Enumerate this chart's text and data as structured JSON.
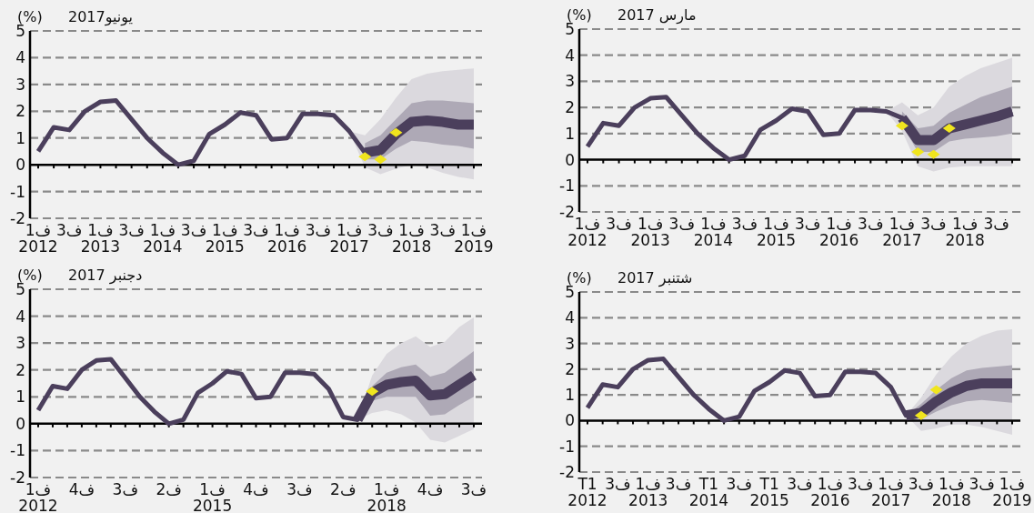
{
  "chart_data": [
    {
      "type": "line",
      "title": "مارس 2017",
      "ylabel": "(%)",
      "ylim": [
        -2,
        5
      ],
      "yticks": [
        -2,
        -1,
        0,
        1,
        2,
        3,
        4,
        5
      ],
      "grid": "y",
      "categories": [
        "ف1\n2012",
        null,
        "ف3",
        null,
        "ف1\n2013",
        null,
        "ف3",
        null,
        "ف1\n2014",
        null,
        "ف3",
        null,
        "ف1\n2015",
        null,
        "ف3",
        null,
        "ف1\n2016",
        null,
        "ف3",
        null,
        "ف1\n2017",
        null,
        "ف3",
        null,
        "ف1\n2018",
        null,
        "ف3",
        null
      ],
      "series": [
        {
          "type": "line",
          "color": "#4b3f5c",
          "values": [
            0.5,
            1.4,
            1.3,
            2.0,
            2.35,
            2.4,
            1.7,
            1.0,
            0.45,
            0.0,
            0.15,
            1.15,
            1.5,
            1.95,
            1.85,
            0.95,
            1.0,
            1.9,
            1.9,
            1.85,
            1.6,
            0.75,
            0.75,
            1.2,
            1.35,
            1.5,
            1.65,
            1.85
          ],
          "lower": [
            null,
            null,
            null,
            null,
            null,
            null,
            null,
            null,
            null,
            null,
            null,
            null,
            null,
            null,
            null,
            null,
            null,
            null,
            null,
            1.85,
            1.1,
            -0.25,
            -0.45,
            -0.3,
            -0.25,
            -0.25,
            -0.25,
            -0.25
          ],
          "upper": [
            null,
            null,
            null,
            null,
            null,
            null,
            null,
            null,
            null,
            null,
            null,
            null,
            null,
            null,
            null,
            null,
            null,
            null,
            null,
            1.85,
            2.2,
            1.7,
            2.0,
            2.8,
            3.2,
            3.5,
            3.7,
            3.9
          ]
        },
        {
          "type": "line",
          "color": "#4b3f5c",
          "values": [
            null,
            null,
            null,
            null,
            null,
            null,
            null,
            null,
            null,
            null,
            null,
            null,
            null,
            null,
            null,
            null,
            null,
            null,
            null,
            null,
            1.6,
            0.75,
            0.75,
            1.2,
            1.35,
            1.5,
            1.65,
            1.85
          ],
          "lower": [
            null,
            null,
            null,
            null,
            null,
            null,
            null,
            null,
            null,
            null,
            null,
            null,
            null,
            null,
            null,
            null,
            null,
            null,
            null,
            null,
            1.35,
            0.3,
            0.3,
            0.7,
            0.8,
            0.85,
            0.9,
            1.0
          ],
          "upper": [
            null,
            null,
            null,
            null,
            null,
            null,
            null,
            null,
            null,
            null,
            null,
            null,
            null,
            null,
            null,
            null,
            null,
            null,
            null,
            null,
            1.85,
            1.2,
            1.3,
            1.8,
            2.1,
            2.4,
            2.6,
            2.8
          ]
        },
        {
          "type": "scatter",
          "marker": "diamond",
          "color": "#f0e51e",
          "values": [
            null,
            null,
            null,
            null,
            null,
            null,
            null,
            null,
            null,
            null,
            null,
            null,
            null,
            null,
            null,
            null,
            null,
            null,
            null,
            null,
            1.3,
            0.3,
            0.2,
            1.2,
            null,
            null,
            null,
            null
          ]
        }
      ]
    },
    {
      "type": "line",
      "title": "يونيو2017",
      "ylabel": "(%)",
      "ylim": [
        -2,
        5
      ],
      "yticks": [
        -2,
        -1,
        0,
        1,
        2,
        3,
        4,
        5
      ],
      "grid": "y",
      "categories": [
        "ف1\n2012",
        null,
        "ف3",
        null,
        "ف1\n2013",
        null,
        "ف3",
        null,
        "ف1\n2014",
        null,
        "ف3",
        null,
        "ف1\n2015",
        null,
        "ف3",
        null,
        "ف1\n2016",
        null,
        "ف3",
        null,
        "ف1\n2017",
        null,
        "ف3",
        null,
        "ف1\n2018",
        null,
        "ف3",
        null,
        "ف1\n2019"
      ],
      "series": [
        {
          "type": "line",
          "color": "#4b3f5c",
          "values": [
            0.5,
            1.4,
            1.3,
            2.0,
            2.35,
            2.4,
            1.7,
            1.0,
            0.45,
            0.0,
            0.15,
            1.15,
            1.5,
            1.95,
            1.85,
            0.95,
            1.0,
            1.9,
            1.9,
            1.85,
            1.25,
            0.45,
            0.55,
            1.15,
            1.6,
            1.65,
            1.6,
            1.5,
            1.5
          ],
          "lower": [
            null,
            null,
            null,
            null,
            null,
            null,
            null,
            null,
            null,
            null,
            null,
            null,
            null,
            null,
            null,
            null,
            null,
            null,
            null,
            null,
            1.25,
            -0.1,
            -0.35,
            -0.15,
            0.0,
            -0.1,
            -0.3,
            -0.45,
            -0.55
          ],
          "upper": [
            null,
            null,
            null,
            null,
            null,
            null,
            null,
            null,
            null,
            null,
            null,
            null,
            null,
            null,
            null,
            null,
            null,
            null,
            null,
            null,
            1.25,
            1.1,
            1.7,
            2.5,
            3.2,
            3.4,
            3.5,
            3.55,
            3.6
          ]
        },
        {
          "type": "line",
          "color": "#4b3f5c",
          "values": [
            null,
            null,
            null,
            null,
            null,
            null,
            null,
            null,
            null,
            null,
            null,
            null,
            null,
            null,
            null,
            null,
            null,
            null,
            null,
            null,
            null,
            0.45,
            0.55,
            1.15,
            1.6,
            1.65,
            1.6,
            1.5,
            1.5
          ],
          "lower": [
            null,
            null,
            null,
            null,
            null,
            null,
            null,
            null,
            null,
            null,
            null,
            null,
            null,
            null,
            null,
            null,
            null,
            null,
            null,
            null,
            null,
            0.2,
            0.2,
            0.6,
            0.9,
            0.85,
            0.75,
            0.7,
            0.6
          ],
          "upper": [
            null,
            null,
            null,
            null,
            null,
            null,
            null,
            null,
            null,
            null,
            null,
            null,
            null,
            null,
            null,
            null,
            null,
            null,
            null,
            null,
            null,
            0.8,
            1.1,
            1.7,
            2.3,
            2.4,
            2.4,
            2.35,
            2.3
          ]
        },
        {
          "type": "scatter",
          "marker": "diamond",
          "color": "#f0e51e",
          "values": [
            null,
            null,
            null,
            null,
            null,
            null,
            null,
            null,
            null,
            null,
            null,
            null,
            null,
            null,
            null,
            null,
            null,
            null,
            null,
            null,
            null,
            0.3,
            0.2,
            1.2,
            null,
            null,
            null,
            null,
            null
          ]
        }
      ]
    },
    {
      "type": "line",
      "title": "شتنبر 2017",
      "ylabel": "(%)",
      "ylim": [
        -2,
        5
      ],
      "yticks": [
        -2,
        -1,
        0,
        1,
        2,
        3,
        4,
        5
      ],
      "grid": "y",
      "categories": [
        "T1\n2012",
        null,
        "ف3",
        null,
        "ف1\n2013",
        null,
        "ف3",
        null,
        "T1\n2014",
        null,
        "ف3",
        null,
        "T1\n2015",
        null,
        "ف3",
        null,
        "ف1\n2016",
        null,
        "ف3",
        null,
        "ف1\n2017",
        null,
        "ف3",
        null,
        "ف1\n2018",
        null,
        "ف3",
        null,
        "ف1\n2019"
      ],
      "series": [
        {
          "type": "line",
          "color": "#4b3f5c",
          "values": [
            0.5,
            1.4,
            1.3,
            2.0,
            2.35,
            2.4,
            1.7,
            1.0,
            0.45,
            0.0,
            0.15,
            1.15,
            1.5,
            1.95,
            1.85,
            0.95,
            1.0,
            1.9,
            1.9,
            1.85,
            1.3,
            0.2,
            0.3,
            0.75,
            1.1,
            1.35,
            1.45,
            1.45,
            1.45
          ],
          "lower": [
            null,
            null,
            null,
            null,
            null,
            null,
            null,
            null,
            null,
            null,
            null,
            null,
            null,
            null,
            null,
            null,
            null,
            null,
            null,
            null,
            null,
            0.2,
            -0.4,
            -0.3,
            -0.15,
            -0.15,
            -0.25,
            -0.4,
            -0.55
          ],
          "upper": [
            null,
            null,
            null,
            null,
            null,
            null,
            null,
            null,
            null,
            null,
            null,
            null,
            null,
            null,
            null,
            null,
            null,
            null,
            null,
            null,
            null,
            0.2,
            0.9,
            1.8,
            2.5,
            3.0,
            3.3,
            3.5,
            3.55
          ]
        },
        {
          "type": "line",
          "color": "#4b3f5c",
          "values": [
            null,
            null,
            null,
            null,
            null,
            null,
            null,
            null,
            null,
            null,
            null,
            null,
            null,
            null,
            null,
            null,
            null,
            null,
            null,
            null,
            null,
            0.2,
            0.3,
            0.75,
            1.1,
            1.35,
            1.45,
            1.45,
            1.45
          ],
          "lower": [
            null,
            null,
            null,
            null,
            null,
            null,
            null,
            null,
            null,
            null,
            null,
            null,
            null,
            null,
            null,
            null,
            null,
            null,
            null,
            null,
            null,
            0.2,
            0.05,
            0.35,
            0.6,
            0.75,
            0.8,
            0.75,
            0.7
          ],
          "upper": [
            null,
            null,
            null,
            null,
            null,
            null,
            null,
            null,
            null,
            null,
            null,
            null,
            null,
            null,
            null,
            null,
            null,
            null,
            null,
            null,
            null,
            0.2,
            0.65,
            1.2,
            1.65,
            1.95,
            2.05,
            2.1,
            2.15
          ]
        },
        {
          "type": "scatter",
          "marker": "diamond",
          "color": "#f0e51e",
          "values": [
            null,
            null,
            null,
            null,
            null,
            null,
            null,
            null,
            null,
            null,
            null,
            null,
            null,
            null,
            null,
            null,
            null,
            null,
            null,
            null,
            null,
            null,
            0.2,
            1.2,
            null,
            null,
            null,
            null,
            null
          ]
        }
      ]
    },
    {
      "type": "line",
      "title": "دجنبر 2017",
      "ylabel": "(%)",
      "ylim": [
        -2,
        5
      ],
      "yticks": [
        -2,
        -1,
        0,
        1,
        2,
        3,
        4,
        5
      ],
      "grid": "y",
      "categories": [
        "ف1\n2012",
        null,
        null,
        "ف4",
        null,
        null,
        "ف3",
        null,
        null,
        "ف2",
        null,
        null,
        "ف1\n2015",
        null,
        null,
        "ف4",
        null,
        null,
        "ف3",
        null,
        null,
        "ف2",
        null,
        null,
        "ف1\n2018",
        null,
        null,
        "ف4",
        null,
        null,
        "ف3"
      ],
      "series": [
        {
          "type": "line",
          "color": "#4b3f5c",
          "values": [
            0.5,
            1.4,
            1.3,
            2.0,
            2.35,
            2.4,
            1.7,
            1.0,
            0.45,
            0.0,
            0.15,
            1.15,
            1.5,
            1.95,
            1.85,
            0.95,
            1.0,
            1.9,
            1.9,
            1.85,
            1.3,
            0.25,
            0.15,
            1.15,
            1.45,
            1.55,
            1.6,
            1.05,
            1.1,
            1.45,
            1.8
          ],
          "lower": [
            null,
            null,
            null,
            null,
            null,
            null,
            null,
            null,
            null,
            null,
            null,
            null,
            null,
            null,
            null,
            null,
            null,
            null,
            null,
            null,
            null,
            null,
            0.15,
            0.4,
            0.5,
            0.35,
            0.05,
            -0.6,
            -0.7,
            -0.45,
            -0.2
          ],
          "upper": [
            null,
            null,
            null,
            null,
            null,
            null,
            null,
            null,
            null,
            null,
            null,
            null,
            null,
            null,
            null,
            null,
            null,
            null,
            null,
            null,
            null,
            null,
            0.15,
            1.8,
            2.6,
            3.0,
            3.25,
            2.85,
            3.05,
            3.6,
            3.95
          ]
        },
        {
          "type": "line",
          "color": "#4b3f5c",
          "values": [
            null,
            null,
            null,
            null,
            null,
            null,
            null,
            null,
            null,
            null,
            null,
            null,
            null,
            null,
            null,
            null,
            null,
            null,
            null,
            null,
            null,
            null,
            0.15,
            1.15,
            1.45,
            1.55,
            1.6,
            1.05,
            1.1,
            1.45,
            1.8
          ],
          "lower": [
            null,
            null,
            null,
            null,
            null,
            null,
            null,
            null,
            null,
            null,
            null,
            null,
            null,
            null,
            null,
            null,
            null,
            null,
            null,
            null,
            null,
            null,
            0.15,
            0.85,
            1.0,
            1.0,
            1.0,
            0.3,
            0.35,
            0.7,
            1.0
          ],
          "upper": [
            null,
            null,
            null,
            null,
            null,
            null,
            null,
            null,
            null,
            null,
            null,
            null,
            null,
            null,
            null,
            null,
            null,
            null,
            null,
            null,
            null,
            null,
            0.15,
            1.4,
            1.9,
            2.1,
            2.2,
            1.75,
            1.9,
            2.3,
            2.7
          ]
        },
        {
          "type": "scatter",
          "marker": "diamond",
          "color": "#f0e51e",
          "values": [
            null,
            null,
            null,
            null,
            null,
            null,
            null,
            null,
            null,
            null,
            null,
            null,
            null,
            null,
            null,
            null,
            null,
            null,
            null,
            null,
            null,
            null,
            null,
            1.2,
            null,
            null,
            null,
            null,
            null,
            null,
            null
          ]
        }
      ]
    }
  ]
}
